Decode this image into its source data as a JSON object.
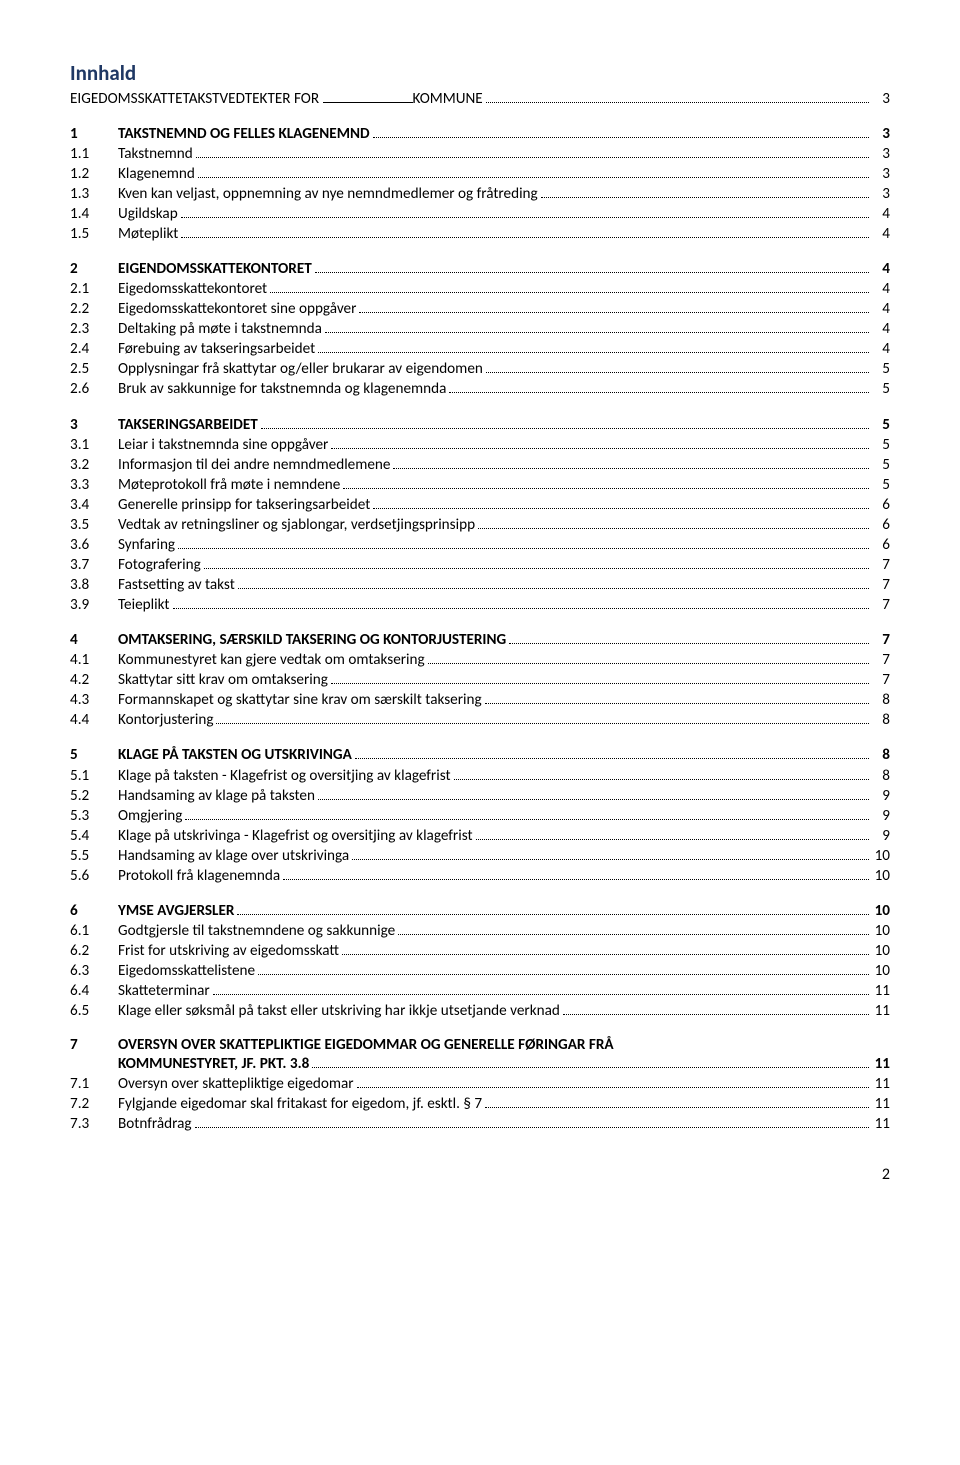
{
  "title": "Innhald",
  "page_number": "2",
  "top_line": {
    "prefix": "EIGEDOMSSKATTETAKSTVEDTEKTER FOR",
    "suffix": " KOMMUNE",
    "page": "3"
  },
  "sections": [
    {
      "num": "1",
      "label": "TAKSTNEMND OG FELLES KLAGENEMND",
      "page": "3",
      "bold": true,
      "items": [
        {
          "num": "1.1",
          "label": "Takstnemnd",
          "page": "3"
        },
        {
          "num": "1.2",
          "label": "Klagenemnd",
          "page": "3"
        },
        {
          "num": "1.3",
          "label": "Kven kan veljast, oppnemning av nye nemndmedlemer og fråtreding",
          "page": "3"
        },
        {
          "num": "1.4",
          "label": "Ugildskap",
          "page": "4"
        },
        {
          "num": "1.5",
          "label": "Møteplikt",
          "page": "4"
        }
      ]
    },
    {
      "num": "2",
      "label": "EIGENDOMSSKATTEKONTORET",
      "page": "4",
      "bold": true,
      "items": [
        {
          "num": "2.1",
          "label": "Eigedomsskattekontoret",
          "page": "4"
        },
        {
          "num": "2.2",
          "label": "Eigedomsskattekontoret sine oppgåver",
          "page": "4"
        },
        {
          "num": "2.3",
          "label": "Deltaking på møte i takstnemnda",
          "page": "4"
        },
        {
          "num": "2.4",
          "label": "Førebuing av takseringsarbeidet",
          "page": "4"
        },
        {
          "num": "2.5",
          "label": "Opplysningar frå skattytar og/eller brukarar av eigendomen",
          "page": "5"
        },
        {
          "num": "2.6",
          "label": "Bruk av sakkunnige for takstnemnda og klagenemnda",
          "page": "5"
        }
      ]
    },
    {
      "num": "3",
      "label": "TAKSERINGSARBEIDET",
      "page": "5",
      "bold": true,
      "items": [
        {
          "num": "3.1",
          "label": "Leiar i takstnemnda sine oppgåver",
          "page": "5"
        },
        {
          "num": "3.2",
          "label": "Informasjon til dei andre nemndmedlemene",
          "page": "5"
        },
        {
          "num": "3.3",
          "label": "Møteprotokoll frå møte i nemndene",
          "page": "5"
        },
        {
          "num": "3.4",
          "label": "Generelle prinsipp for takseringsarbeidet",
          "page": "6"
        },
        {
          "num": "3.5",
          "label": "Vedtak av retningsliner og sjablongar, verdsetjingsprinsipp",
          "page": "6"
        },
        {
          "num": "3.6",
          "label": "Synfaring",
          "page": "6"
        },
        {
          "num": "3.7",
          "label": "Fotografering",
          "page": "7"
        },
        {
          "num": "3.8",
          "label": "Fastsetting av takst",
          "page": "7"
        },
        {
          "num": "3.9",
          "label": "Teieplikt",
          "page": "7"
        }
      ]
    },
    {
      "num": "4",
      "label": "OMTAKSERING, SÆRSKILD TAKSERING OG KONTORJUSTERING",
      "page": "7",
      "bold": true,
      "items": [
        {
          "num": "4.1",
          "label": "Kommunestyret kan gjere vedtak om omtaksering",
          "page": "7"
        },
        {
          "num": "4.2",
          "label": "Skattytar sitt krav om omtaksering",
          "page": "7"
        },
        {
          "num": "4.3",
          "label": "Formannskapet og skattytar sine krav om særskilt taksering",
          "page": "8"
        },
        {
          "num": "4.4",
          "label": "Kontorjustering",
          "page": "8"
        }
      ]
    },
    {
      "num": "5",
      "label": "KLAGE PÅ TAKSTEN OG UTSKRIVINGA",
      "page": "8",
      "bold": true,
      "items": [
        {
          "num": "5.1",
          "label": "Klage på taksten - Klagefrist og oversitjing av klagefrist",
          "page": "8"
        },
        {
          "num": "5.2",
          "label": "Handsaming av klage på taksten",
          "page": "9"
        },
        {
          "num": "5.3",
          "label": "Omgjering",
          "page": "9"
        },
        {
          "num": "5.4",
          "label": "Klage på utskrivinga - Klagefrist og oversitjing av klagefrist",
          "page": "9"
        },
        {
          "num": "5.5",
          "label": "Handsaming av klage over utskrivinga",
          "page": "10"
        },
        {
          "num": "5.6",
          "label": "Protokoll frå klagenemnda",
          "page": "10"
        }
      ]
    },
    {
      "num": "6",
      "label": "YMSE AVGJERSLER",
      "page": "10",
      "bold": true,
      "items": [
        {
          "num": "6.1",
          "label": "Godtgjersle til takstnemndene og sakkunnige",
          "page": "10"
        },
        {
          "num": "6.2",
          "label": "Frist for utskriving av eigedomsskatt",
          "page": "10"
        },
        {
          "num": "6.3",
          "label": "Eigedomsskattelistene",
          "page": "10"
        },
        {
          "num": "6.4",
          "label": "Skatteterminar",
          "page": "11"
        },
        {
          "num": "6.5",
          "label": "Klage eller søksmål på takst eller utskriving har ikkje utsetjande verknad",
          "page": "11"
        }
      ]
    },
    {
      "num": "7",
      "label": "OVERSYN OVER SKATTEPLIKTIGE EIGEDOMMAR OG GENERELLE FØRINGAR FRÅ KOMMUNESTYRET, JF. PKT. 3.8",
      "page": "11",
      "bold": true,
      "multiline": true,
      "items": [
        {
          "num": "7.1",
          "label": "Oversyn over skattepliktige eigedomar",
          "page": "11"
        },
        {
          "num": "7.2",
          "label": "Fylgjande eigedomar skal fritakast for eigedom, jf. esktl. § 7",
          "page": "11"
        },
        {
          "num": "7.3",
          "label": "Botnfrådrag",
          "page": "11"
        }
      ]
    }
  ]
}
